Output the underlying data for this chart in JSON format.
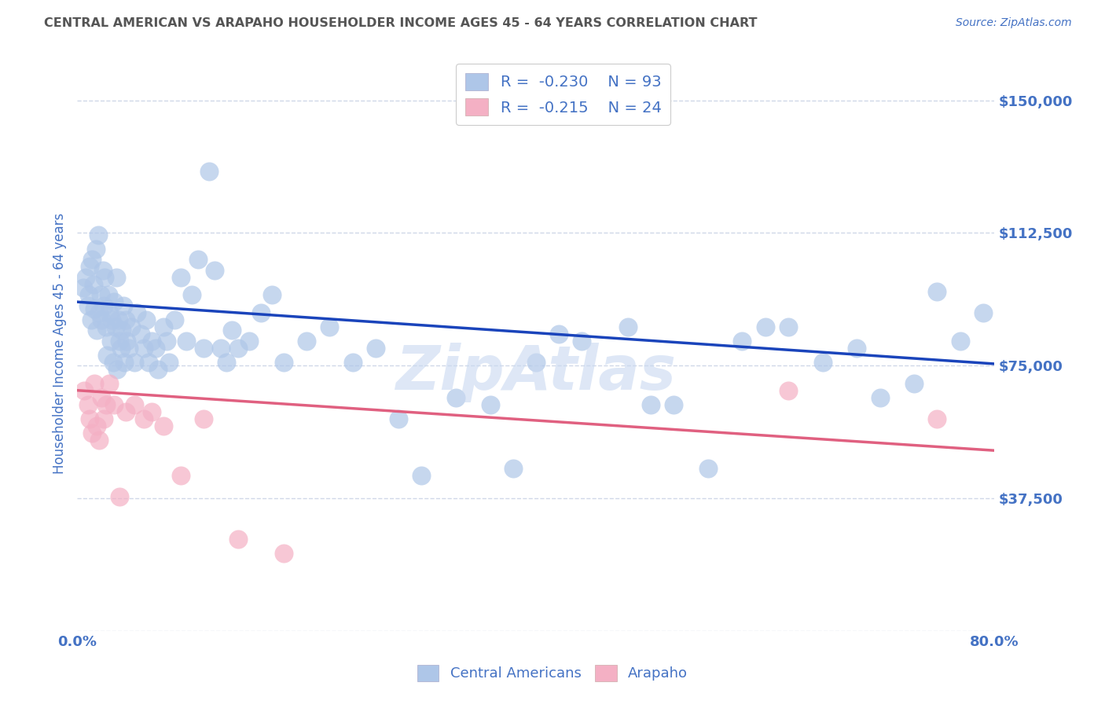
{
  "title": "CENTRAL AMERICAN VS ARAPAHO HOUSEHOLDER INCOME AGES 45 - 64 YEARS CORRELATION CHART",
  "source": "Source: ZipAtlas.com",
  "ylabel": "Householder Income Ages 45 - 64 years",
  "xlim": [
    0.0,
    0.8
  ],
  "ylim": [
    0,
    162500
  ],
  "yticks": [
    0,
    37500,
    75000,
    112500,
    150000
  ],
  "ytick_labels": [
    "",
    "$37,500",
    "$75,000",
    "$112,500",
    "$150,000"
  ],
  "background_color": "#ffffff",
  "grid_color": "#d0d8e8",
  "title_color": "#555555",
  "axis_label_color": "#4472c4",
  "blue_scatter_color": "#aec6e8",
  "blue_line_color": "#1a44bb",
  "pink_scatter_color": "#f4b0c4",
  "pink_line_color": "#e06080",
  "legend_color": "#4472c4",
  "watermark": "ZipAtlas",
  "watermark_color": "#c8d8f0",
  "blue_x": [
    0.005,
    0.007,
    0.009,
    0.01,
    0.011,
    0.012,
    0.013,
    0.014,
    0.015,
    0.016,
    0.017,
    0.018,
    0.019,
    0.02,
    0.021,
    0.022,
    0.023,
    0.024,
    0.025,
    0.026,
    0.027,
    0.028,
    0.029,
    0.03,
    0.031,
    0.032,
    0.033,
    0.034,
    0.035,
    0.036,
    0.037,
    0.038,
    0.039,
    0.04,
    0.041,
    0.042,
    0.043,
    0.045,
    0.047,
    0.05,
    0.052,
    0.055,
    0.058,
    0.06,
    0.062,
    0.065,
    0.068,
    0.07,
    0.075,
    0.078,
    0.08,
    0.085,
    0.09,
    0.095,
    0.1,
    0.105,
    0.11,
    0.115,
    0.12,
    0.125,
    0.13,
    0.135,
    0.14,
    0.15,
    0.16,
    0.17,
    0.18,
    0.2,
    0.22,
    0.24,
    0.26,
    0.28,
    0.3,
    0.33,
    0.36,
    0.4,
    0.44,
    0.48,
    0.52,
    0.55,
    0.58,
    0.6,
    0.62,
    0.65,
    0.68,
    0.7,
    0.73,
    0.75,
    0.77,
    0.79,
    0.5,
    0.38,
    0.42
  ],
  "blue_y": [
    97000,
    100000,
    92000,
    95000,
    103000,
    88000,
    105000,
    98000,
    91000,
    108000,
    85000,
    112000,
    90000,
    95000,
    88000,
    102000,
    92000,
    100000,
    86000,
    78000,
    95000,
    90000,
    82000,
    88000,
    76000,
    93000,
    86000,
    100000,
    74000,
    88000,
    82000,
    80000,
    85000,
    92000,
    76000,
    88000,
    82000,
    80000,
    86000,
    76000,
    90000,
    84000,
    80000,
    88000,
    76000,
    82000,
    80000,
    74000,
    86000,
    82000,
    76000,
    88000,
    100000,
    82000,
    95000,
    105000,
    80000,
    130000,
    102000,
    80000,
    76000,
    85000,
    80000,
    82000,
    90000,
    95000,
    76000,
    82000,
    86000,
    76000,
    80000,
    60000,
    44000,
    66000,
    64000,
    76000,
    82000,
    86000,
    64000,
    46000,
    82000,
    86000,
    86000,
    76000,
    80000,
    66000,
    70000,
    96000,
    82000,
    90000,
    64000,
    46000,
    84000
  ],
  "pink_x": [
    0.006,
    0.009,
    0.011,
    0.013,
    0.015,
    0.017,
    0.019,
    0.021,
    0.023,
    0.025,
    0.028,
    0.032,
    0.037,
    0.042,
    0.05,
    0.058,
    0.065,
    0.075,
    0.09,
    0.11,
    0.14,
    0.18,
    0.62,
    0.75
  ],
  "pink_y": [
    68000,
    64000,
    60000,
    56000,
    70000,
    58000,
    54000,
    66000,
    60000,
    64000,
    70000,
    64000,
    38000,
    62000,
    64000,
    60000,
    62000,
    58000,
    44000,
    60000,
    26000,
    22000,
    68000,
    60000
  ],
  "blue_line_x0": 0.0,
  "blue_line_y0": 93000,
  "blue_line_x1": 0.8,
  "blue_line_y1": 75500,
  "pink_line_x0": 0.0,
  "pink_line_y0": 68000,
  "pink_line_x1": 0.8,
  "pink_line_y1": 51000,
  "figsize": [
    14.06,
    8.92
  ],
  "dpi": 100
}
